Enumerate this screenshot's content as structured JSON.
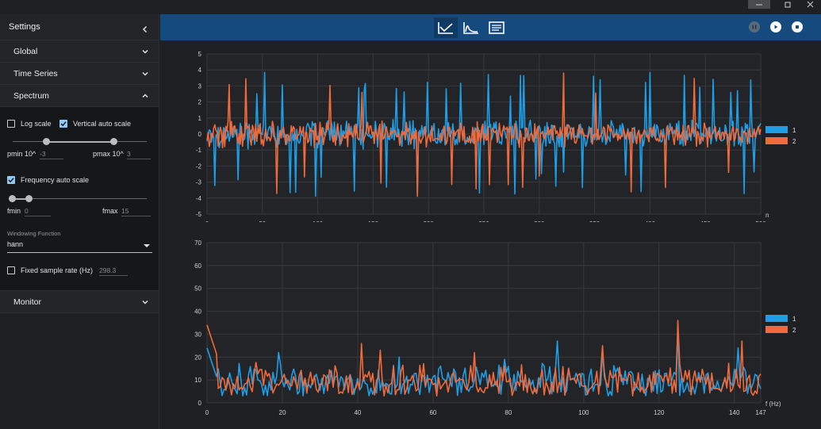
{
  "window": {
    "controls": {
      "minimize": "minimize",
      "maximize": "maximize",
      "close": "close"
    }
  },
  "sidebar": {
    "title": "Settings",
    "sections": {
      "global": "Global",
      "time_series": "Time Series",
      "spectrum": "Spectrum",
      "monitor": "Monitor"
    },
    "spectrum": {
      "log_scale": {
        "label": "Log scale",
        "checked": false
      },
      "vertical_auto_scale": {
        "label": "Vertical auto scale",
        "checked": true
      },
      "pmin_label": "pmin 10^",
      "pmin_value": "-3",
      "pmax_label": "pmax 10^",
      "pmax_value": "3",
      "frequency_auto_scale": {
        "label": "Frequency auto scale",
        "checked": true
      },
      "fmin_label": "fmin",
      "fmin_value": "0",
      "fmax_label": "fmax",
      "fmax_value": "15",
      "windowing_caption": "Windowing Function",
      "windowing_value": "hann",
      "fixed_sample_rate": {
        "label": "Fixed sample rate (Hz)",
        "checked": false,
        "placeholder": "298.3"
      }
    }
  },
  "toolbar": {
    "icons": [
      "time-series-icon",
      "spectrum-icon",
      "monitor-icon"
    ],
    "controls": [
      "pause-icon",
      "play-icon",
      "stop-icon"
    ]
  },
  "colors": {
    "series1": "#1e9ee6",
    "series2": "#f06a3c",
    "bg": "#1f2023",
    "topbar": "#154a7e"
  },
  "chart_data": [
    {
      "type": "line",
      "x_axis_label": "n",
      "xlim": [
        0,
        500
      ],
      "ylim": [
        -5,
        5
      ],
      "xticks": [
        0,
        50,
        100,
        150,
        200,
        250,
        300,
        350,
        400,
        450,
        500
      ],
      "yticks": [
        -5,
        -4,
        -3,
        -2,
        -1,
        0,
        1,
        2,
        3,
        4,
        5
      ],
      "legend_position": "right",
      "series": [
        {
          "name": "1",
          "color": "#1e9ee6",
          "amplitude": 1.0,
          "peak_indices": [
            7,
            28,
            45,
            52,
            68,
            75,
            80,
            98,
            103,
            133,
            137,
            142,
            143,
            162,
            171,
            178,
            190,
            199,
            216,
            229,
            246,
            254,
            274,
            278,
            286,
            283,
            297,
            302,
            315,
            322,
            339,
            349,
            355,
            378,
            392,
            396,
            400,
            431,
            445,
            457,
            473,
            479,
            485,
            491,
            494
          ]
        },
        {
          "name": "2",
          "color": "#f06a3c",
          "amplitude": 0.9,
          "peak_indices": [
            20,
            35,
            63,
            88,
            111,
            140,
            157,
            190,
            221,
            243,
            255,
            272,
            285,
            300,
            322,
            351,
            383,
            414,
            440,
            471
          ]
        }
      ]
    },
    {
      "type": "line",
      "x_axis_label": "f (Hz)",
      "xlim": [
        0,
        147
      ],
      "ylim": [
        0,
        70
      ],
      "xticks": [
        0,
        20,
        40,
        60,
        80,
        100,
        120,
        140,
        147
      ],
      "yticks": [
        0,
        10,
        20,
        30,
        40,
        50,
        60,
        70
      ],
      "legend_position": "right",
      "series": [
        {
          "name": "1",
          "color": "#1e9ee6",
          "start": 24,
          "peaks": [
            [
              19,
              22
            ],
            [
              51,
              20
            ],
            [
              62,
              16
            ],
            [
              79,
              19
            ],
            [
              93,
              27
            ],
            [
              105,
              21
            ],
            [
              125,
              32
            ],
            [
              141,
              24
            ]
          ]
        },
        {
          "name": "2",
          "color": "#f06a3c",
          "start": 34,
          "peaks": [
            [
              41,
              26
            ],
            [
              46,
              23
            ],
            [
              71,
              22
            ],
            [
              105,
              25
            ],
            [
              125,
              36
            ],
            [
              142,
              27
            ]
          ]
        }
      ]
    }
  ]
}
